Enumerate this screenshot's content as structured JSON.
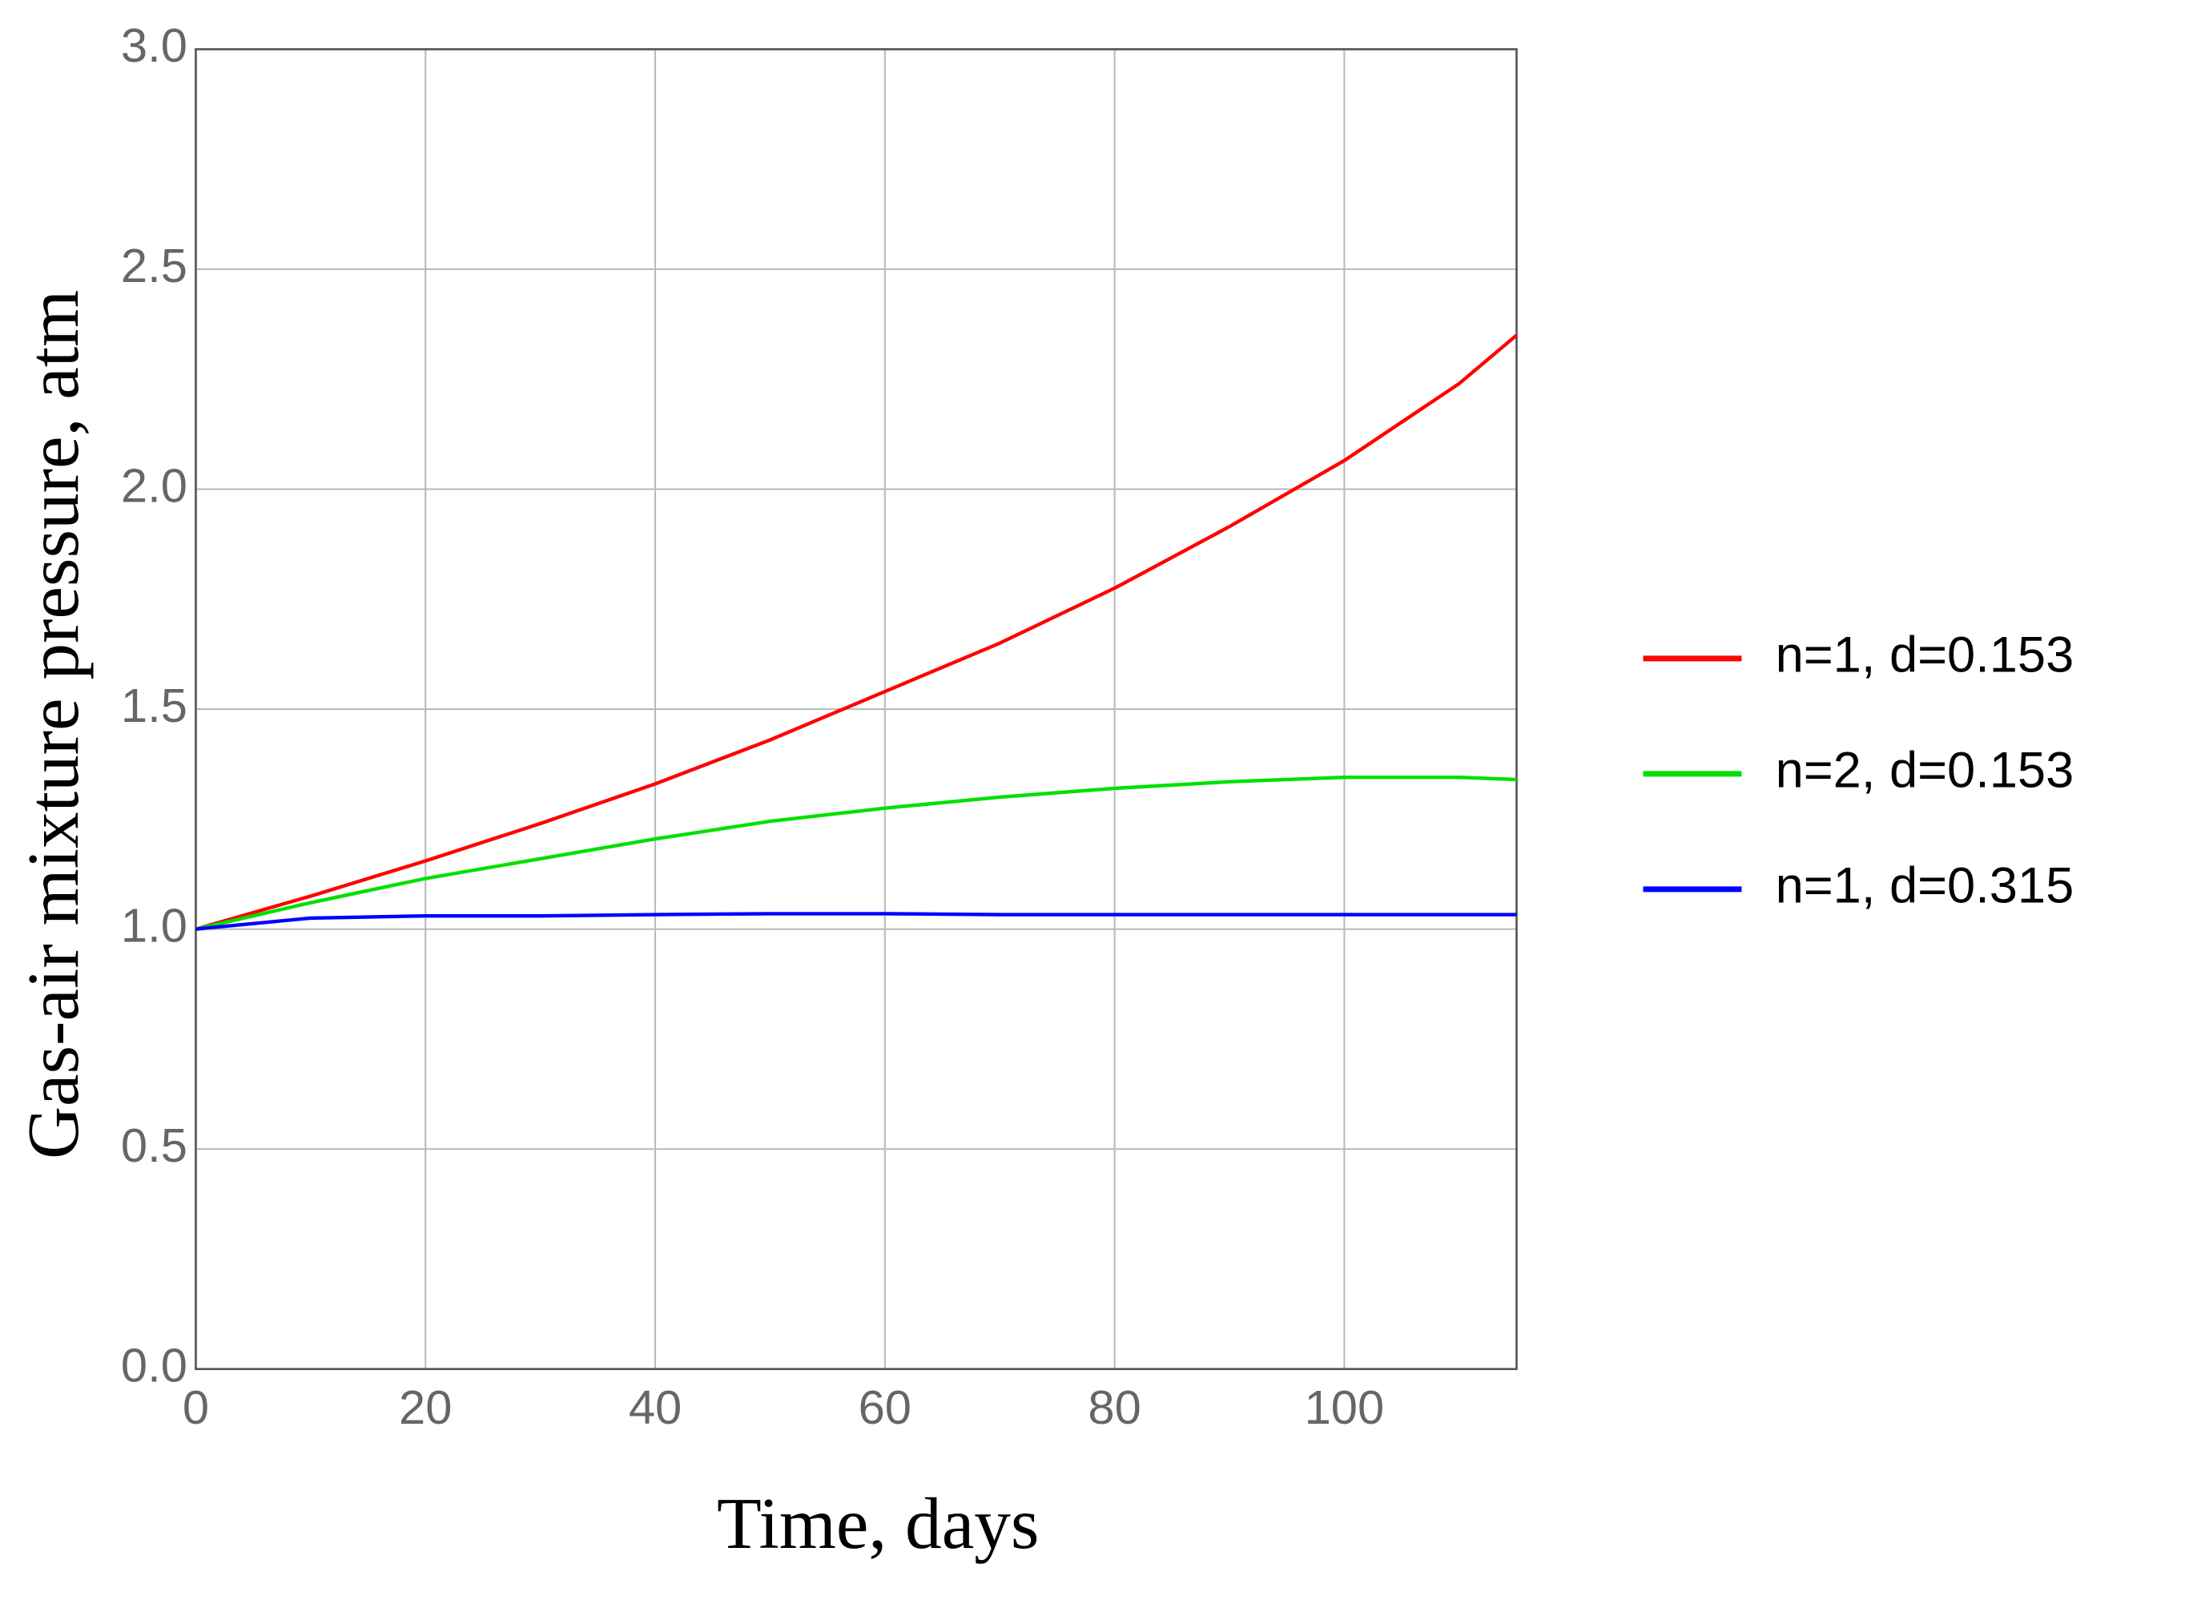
{
  "chart_data": {
    "type": "line",
    "x_label": "Time, days",
    "y_label": "Gas-air mixture pressure, atm",
    "x": [
      0,
      10,
      20,
      30,
      40,
      50,
      60,
      70,
      80,
      90,
      100,
      110,
      115
    ],
    "series": [
      {
        "name": "n=1, d=0.153",
        "color": "#ff0000",
        "values": [
          1.0,
          1.075,
          1.155,
          1.24,
          1.33,
          1.43,
          1.54,
          1.65,
          1.775,
          1.915,
          2.065,
          2.24,
          2.35
        ]
      },
      {
        "name": "n=2, d=0.153",
        "color": "#00e000",
        "values": [
          1.0,
          1.06,
          1.115,
          1.16,
          1.205,
          1.245,
          1.275,
          1.3,
          1.32,
          1.335,
          1.345,
          1.345,
          1.34
        ]
      },
      {
        "name": "n=1, d=0.315",
        "color": "#0000ff",
        "values": [
          1.0,
          1.025,
          1.03,
          1.03,
          1.033,
          1.035,
          1.035,
          1.033,
          1.033,
          1.033,
          1.033,
          1.033,
          1.033
        ]
      }
    ],
    "xlim": [
      0,
      115
    ],
    "ylim": [
      0,
      3.0
    ],
    "xticks": [
      0,
      20,
      40,
      60,
      80,
      100
    ],
    "yticks": [
      {
        "value": 0,
        "label": "0.0"
      },
      0.5,
      {
        "value": 1,
        "label": "1.0"
      },
      1.5,
      {
        "value": 2,
        "label": "2.0"
      },
      2.5,
      {
        "value": 3,
        "label": "3.0"
      }
    ],
    "grid": true,
    "legend": "right"
  }
}
